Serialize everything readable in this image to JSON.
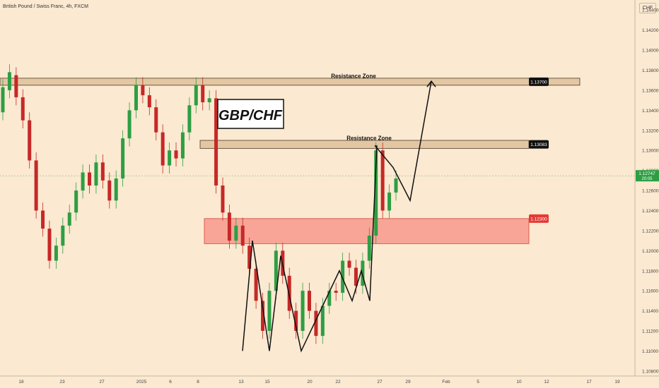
{
  "header": {
    "title": "British Pound / Swiss Franc, 4h, FXCM",
    "currency_button": "CHF"
  },
  "chart_data": {
    "type": "candlestick",
    "symbol_label": "GBP/CHF",
    "ylim": [
      1.1075,
      1.145
    ],
    "y_ticks": [
      "1.14400",
      "1.14200",
      "1.14000",
      "1.13800",
      "1.13600",
      "1.13400",
      "1.13200",
      "1.13000",
      "1.12800",
      "1.12600",
      "1.12400",
      "1.12200",
      "1.12000",
      "1.11800",
      "1.11600",
      "1.11400",
      "1.11200",
      "1.11000",
      "1.10800"
    ],
    "x_ticks": [
      "18",
      "23",
      "27",
      "2025",
      "6",
      "8",
      "13",
      "15",
      "20",
      "22",
      "27",
      "29",
      "Feb",
      "5",
      "10",
      "12",
      "17",
      "19"
    ],
    "current_price": {
      "label": "1.12747",
      "sub": "20:05",
      "value": 1.12747,
      "color": "#2e9e44"
    },
    "levels": [
      {
        "name": "Resistance Zone",
        "low": 1.1365,
        "high": 1.1372,
        "tag": "1.13700",
        "tag_color": "#111111",
        "fill": "#d9bb92"
      },
      {
        "name": "Resistance Zone",
        "low": 1.1302,
        "high": 1.131,
        "tag": "1.13083",
        "tag_color": "#111111",
        "fill": "#d9bb92"
      }
    ],
    "support_zone": {
      "low": 1.1207,
      "high": 1.1232,
      "tag": "1.12300",
      "tag_color": "#e53935",
      "fill": "#f7998d"
    },
    "colors": {
      "up": "#2e9e44",
      "down": "#c62828",
      "background": "#fbe9d1"
    },
    "series": [
      {
        "name": "",
        "points": [
          [
            1.1338,
            1.1363
          ],
          [
            1.136,
            1.1378
          ],
          [
            1.1375,
            1.1353
          ],
          [
            1.1353,
            1.133
          ],
          [
            1.133,
            1.129
          ],
          [
            1.129,
            1.124
          ],
          [
            1.124,
            1.1222
          ],
          [
            1.1222,
            1.119
          ],
          [
            1.119,
            1.1205
          ],
          [
            1.1205,
            1.1225
          ],
          [
            1.1225,
            1.1238
          ],
          [
            1.1238,
            1.126
          ],
          [
            1.126,
            1.1278
          ],
          [
            1.1278,
            1.1265
          ],
          [
            1.1265,
            1.1288
          ],
          [
            1.1288,
            1.127
          ],
          [
            1.127,
            1.125
          ],
          [
            1.125,
            1.1272
          ],
          [
            1.1272,
            1.1312
          ],
          [
            1.1312,
            1.134
          ],
          [
            1.134,
            1.1365
          ],
          [
            1.1365,
            1.1355
          ],
          [
            1.1355,
            1.1343
          ],
          [
            1.1343,
            1.1318
          ],
          [
            1.1318,
            1.1285
          ],
          [
            1.1285,
            1.13
          ],
          [
            1.13,
            1.1292
          ],
          [
            1.1292,
            1.1318
          ],
          [
            1.1318,
            1.1345
          ],
          [
            1.1345,
            1.1365
          ],
          [
            1.1365,
            1.1348
          ],
          [
            1.1348,
            1.1352
          ],
          [
            1.1352,
            1.1265
          ],
          [
            1.1265,
            1.1238
          ],
          [
            1.1238,
            1.121
          ],
          [
            1.121,
            1.1225
          ],
          [
            1.1225,
            1.1205
          ],
          [
            1.1205,
            1.1182
          ],
          [
            1.1182,
            1.115
          ],
          [
            1.115,
            1.112
          ],
          [
            1.112,
            1.116
          ],
          [
            1.116,
            1.12
          ],
          [
            1.12,
            1.1175
          ],
          [
            1.1175,
            1.114
          ],
          [
            1.114,
            1.112
          ],
          [
            1.112,
            1.116
          ],
          [
            1.116,
            1.114
          ],
          [
            1.114,
            1.1115
          ],
          [
            1.1115,
            1.1145
          ],
          [
            1.1145,
            1.116
          ],
          [
            1.116,
            1.1158
          ],
          [
            1.1158,
            1.119
          ],
          [
            1.119,
            1.1183
          ],
          [
            1.1183,
            1.1165
          ],
          [
            1.1165,
            1.119
          ],
          [
            1.119,
            1.1215
          ],
          [
            1.1215,
            1.13
          ],
          [
            1.13,
            1.124
          ],
          [
            1.124,
            1.1258
          ],
          [
            1.1258,
            1.1272
          ]
        ]
      }
    ],
    "projection": [
      [
        1.1305,
        1.1283
      ],
      [
        1.1283,
        1.125
      ],
      [
        1.125,
        1.1369
      ]
    ],
    "pattern_path": [
      [
        1.11,
        1.121
      ],
      [
        1.121,
        1.11
      ],
      [
        1.11,
        1.1195
      ],
      [
        1.1195,
        1.11
      ],
      [
        1.11,
        1.118
      ],
      [
        1.118,
        1.115
      ],
      [
        1.115,
        1.118
      ],
      [
        1.118,
        1.115
      ],
      [
        1.115,
        1.1305
      ]
    ]
  }
}
